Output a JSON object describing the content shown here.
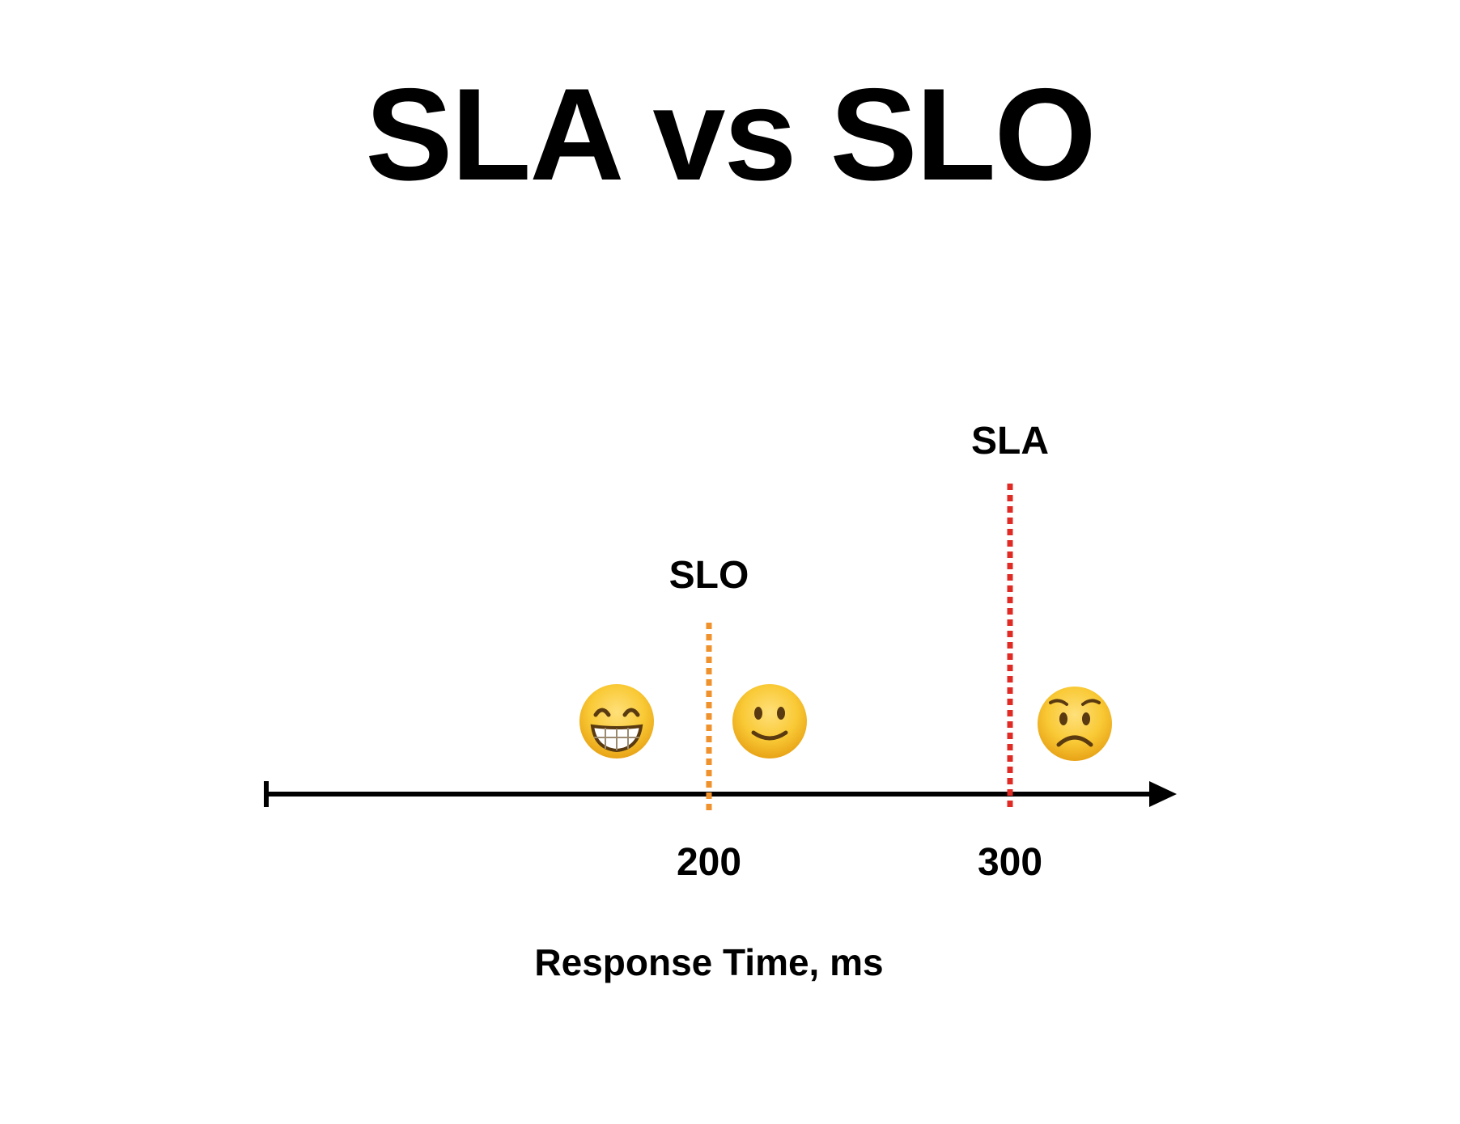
{
  "title": "SLA vs SLO",
  "axis": {
    "title": "Response Time, ms",
    "ticks": [
      {
        "value": 200,
        "label": "200"
      },
      {
        "value": 300,
        "label": "300"
      }
    ],
    "color": "#000000"
  },
  "thresholds": [
    {
      "key": "slo",
      "label": "SLO",
      "value": 200,
      "color": "#f0922b",
      "style": "dotted"
    },
    {
      "key": "sla",
      "label": "SLA",
      "value": 300,
      "color": "#e02a24",
      "style": "dotted"
    }
  ],
  "faces": [
    {
      "key": "grinning",
      "region": "below SLO",
      "mood": "very happy",
      "icon": "grinning-face-icon"
    },
    {
      "key": "smiling",
      "region": "between SLO and SLA",
      "mood": "content",
      "icon": "slightly-smiling-face-icon"
    },
    {
      "key": "worried",
      "region": "above SLA",
      "mood": "unhappy",
      "icon": "worried-face-icon"
    }
  ]
}
